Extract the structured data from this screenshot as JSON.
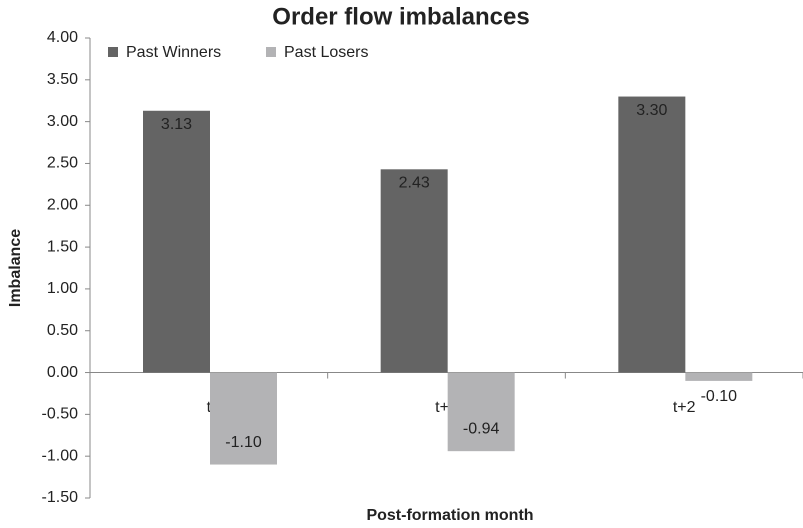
{
  "chart_data": {
    "type": "bar",
    "title": "Order flow imbalances",
    "x_label": "Post-formation month",
    "y_label": "Imbalance",
    "categories": [
      "t",
      "t+1",
      "t+2"
    ],
    "series": [
      {
        "name": "Past Winners",
        "color": "#646464",
        "values": [
          3.13,
          2.43,
          3.3
        ],
        "value_labels": [
          "3.13",
          "2.43",
          "3.30"
        ]
      },
      {
        "name": "Past Losers",
        "color": "#b3b3b5",
        "values": [
          -1.1,
          -0.94,
          -0.1
        ],
        "value_labels": [
          "-1.10",
          "-0.94",
          "-0.10"
        ]
      }
    ],
    "ylim": [
      -1.5,
      4
    ],
    "yticks": [
      {
        "value": -1.5,
        "label": "-1.50"
      },
      {
        "value": -1,
        "label": "-1.00"
      },
      {
        "value": -0.5,
        "label": "-0.50"
      },
      {
        "value": 0,
        "label": "0.00"
      },
      {
        "value": 0.5,
        "label": "0.50"
      },
      {
        "value": 1,
        "label": "1.00"
      },
      {
        "value": 1.5,
        "label": "1.50"
      },
      {
        "value": 2,
        "label": "2.00"
      },
      {
        "value": 2.5,
        "label": "2.50"
      },
      {
        "value": 3,
        "label": "3.00"
      },
      {
        "value": 3.5,
        "label": "3.50"
      },
      {
        "value": 4,
        "label": "4.00"
      }
    ],
    "legend": "top-left"
  }
}
